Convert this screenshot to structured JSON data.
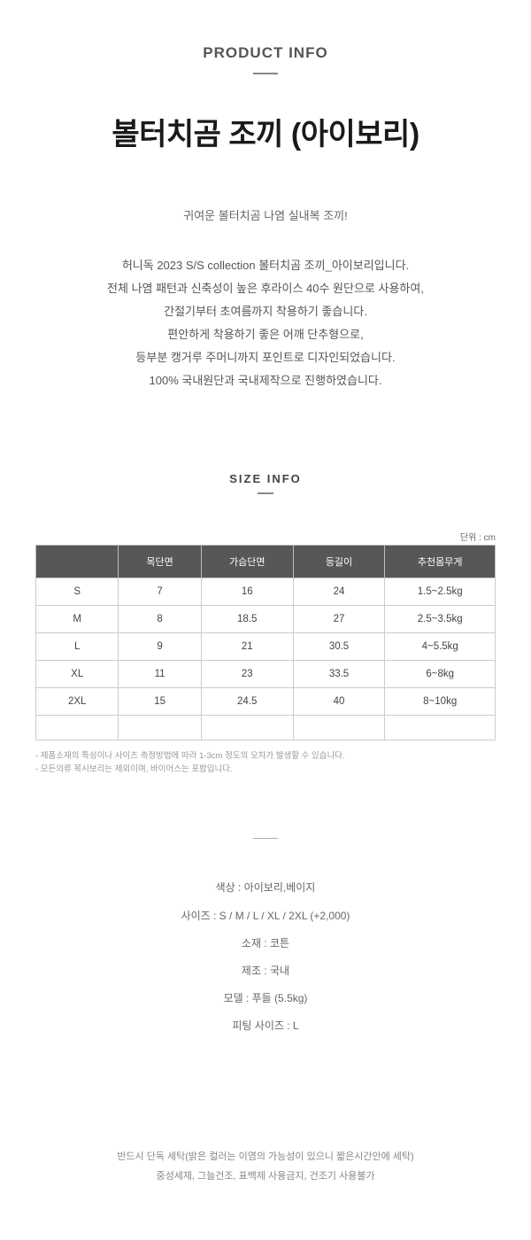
{
  "section_label": "PRODUCT INFO",
  "product_title": "볼터치곰 조끼 (아이보리)",
  "intro_line": "귀여운 볼터치곰 나염 실내복 조끼!",
  "description_lines": [
    "허니독 2023 S/S collection 볼터치곰 조끼_아이보리입니다.",
    "전체 나염 패턴과 신축성이 높은 후라이스 40수 원단으로 사용하여,",
    "간절기부터 초여름까지 착용하기 좋습니다.",
    "편안하게 착용하기 좋은 어깨 단추형으로,",
    "등부분 캥거루 주머니까지 포인트로 디자인되었습니다.",
    "100% 국내원단과 국내제작으로 진행하였습니다."
  ],
  "size_label": "SIZE INFO",
  "unit_note": "단위 : cm",
  "size_table": {
    "columns": [
      "",
      "목단면",
      "가슴단면",
      "등길이",
      "추천몸무게"
    ],
    "rows": [
      [
        "S",
        "7",
        "16",
        "24",
        "1.5~2.5kg"
      ],
      [
        "M",
        "8",
        "18.5",
        "27",
        "2.5~3.5kg"
      ],
      [
        "L",
        "9",
        "21",
        "30.5",
        "4~5.5kg"
      ],
      [
        "XL",
        "11",
        "23",
        "33.5",
        "6~8kg"
      ],
      [
        "2XL",
        "15",
        "24.5",
        "40",
        "8~10kg"
      ]
    ],
    "col_widths": [
      "18%",
      "18%",
      "20%",
      "20%",
      "24%"
    ],
    "header_bg": "#565759",
    "header_fg": "#ffffff",
    "border_color": "#cccccc",
    "cell_fontsize": 11.5
  },
  "footnotes": [
    "- 제품소재의 특성이나 사이즈 측정방법에 따라 1-3cm 정도의 오차가 발생할 수 있습니다.",
    "- 모든의류 목시보리는 제외이며, 바이어스는 포함입니다."
  ],
  "details": [
    "색상 : 아이보리,베이지",
    "사이즈 : S / M / L / XL / 2XL (+2,000)",
    "소재 : 코튼",
    "제조 : 국내",
    "모델 : 푸들 (5.5kg)",
    "피팅 사이즈 : L"
  ],
  "care_notes": [
    "반드시 단독 세탁(밝은 컬러는 이염의 가능성이 있으니 짧은시간안에 세탁)",
    "중성세제, 그늘건조, 표백제 사용금지, 건조기 사용불가"
  ]
}
